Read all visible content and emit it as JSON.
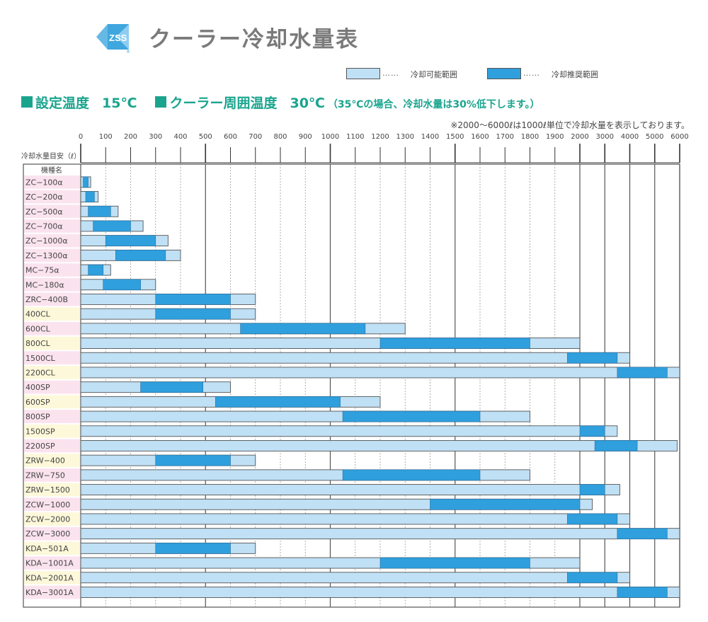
{
  "header": {
    "logo_text": "ZSS",
    "title": "クーラー冷却水量表"
  },
  "legend": {
    "possible_label": "冷却可能範囲",
    "recommended_label": "冷却推奨範囲",
    "dots": "……"
  },
  "conditions": {
    "set_temp_label": "設定温度",
    "set_temp_value": "15℃",
    "ambient_label": "クーラー周囲温度",
    "ambient_value": "30℃",
    "ambient_note": "（35℃の場合、冷却水量は30%低下します。）"
  },
  "note": "※2000〜6000ℓは1000ℓ単位で冷却水量を表示しております。",
  "colors": {
    "possible": "#bfe0f5",
    "recommended": "#2f9fdd",
    "label_pink": "#fbe3ee",
    "label_yellow": "#fdf8d9",
    "accent": "#1aa48e"
  },
  "chart_data": {
    "type": "bar",
    "orientation": "horizontal",
    "title": "クーラー冷却水量表",
    "xlabel": "冷却水量目安（ℓ）",
    "ylabel": "機種名",
    "x_ticks": [
      "0",
      "100",
      "200",
      "300",
      "400",
      "500",
      "600",
      "700",
      "800",
      "900",
      "1000",
      "1100",
      "1200",
      "1300",
      "1400",
      "1500",
      "1600",
      "1700",
      "1800",
      "1900",
      "2000",
      "3000",
      "4000",
      "5000",
      "6000"
    ],
    "x_scale": "piecewise: 0–2000 linear by 100, 2000–6000 linear by 1000",
    "categories": [
      "ZC−100α",
      "ZC−200α",
      "ZC−500α",
      "ZC−700α",
      "ZC−1000α",
      "ZC−1300α",
      "MC−75α",
      "MC−180α",
      "ZRC−400B",
      "400CL",
      "600CL",
      "800CL",
      "1500CL",
      "2200CL",
      "400SP",
      "600SP",
      "800SP",
      "1500SP",
      "2200SP",
      "ZRW−400",
      "ZRW−750",
      "ZRW−1500",
      "ZCW−1000",
      "ZCW−2000",
      "ZCW−3000",
      "KDA−501A",
      "KDA−1001A",
      "KDA−2001A",
      "KDA−3001A"
    ],
    "label_colors": [
      "pink",
      "pink",
      "pink",
      "pink",
      "pink",
      "pink",
      "pink",
      "pink",
      "pink",
      "yellow",
      "pink",
      "yellow",
      "pink",
      "yellow",
      "pink",
      "yellow",
      "pink",
      "yellow",
      "pink",
      "yellow",
      "pink",
      "yellow",
      "pink",
      "yellow",
      "pink",
      "yellow",
      "pink",
      "yellow",
      "pink"
    ],
    "series": [
      {
        "name": "冷却可能範囲",
        "values": [
          [
            0,
            40
          ],
          [
            0,
            70
          ],
          [
            0,
            150
          ],
          [
            0,
            250
          ],
          [
            0,
            350
          ],
          [
            0,
            400
          ],
          [
            0,
            120
          ],
          [
            0,
            300
          ],
          [
            0,
            700
          ],
          [
            0,
            700
          ],
          [
            0,
            1300
          ],
          [
            0,
            2000
          ],
          [
            0,
            4000
          ],
          [
            0,
            6000
          ],
          [
            0,
            600
          ],
          [
            0,
            1200
          ],
          [
            0,
            1800
          ],
          [
            0,
            3500
          ],
          [
            0,
            5900
          ],
          [
            0,
            700
          ],
          [
            0,
            1800
          ],
          [
            0,
            3600
          ],
          [
            0,
            2500
          ],
          [
            0,
            4000
          ],
          [
            0,
            6000
          ],
          [
            0,
            700
          ],
          [
            0,
            2000
          ],
          [
            0,
            4000
          ],
          [
            0,
            6000
          ]
        ]
      },
      {
        "name": "冷却推奨範囲",
        "values": [
          [
            10,
            30
          ],
          [
            20,
            55
          ],
          [
            30,
            120
          ],
          [
            50,
            200
          ],
          [
            100,
            300
          ],
          [
            140,
            340
          ],
          [
            30,
            90
          ],
          [
            90,
            240
          ],
          [
            300,
            600
          ],
          [
            300,
            600
          ],
          [
            640,
            1140
          ],
          [
            1200,
            1800
          ],
          [
            1950,
            3500
          ],
          [
            3500,
            5500
          ],
          [
            240,
            490
          ],
          [
            540,
            1040
          ],
          [
            1050,
            1600
          ],
          [
            2000,
            3000
          ],
          [
            2600,
            4300
          ],
          [
            300,
            600
          ],
          [
            1050,
            1600
          ],
          [
            2000,
            3000
          ],
          [
            1400,
            2000
          ],
          [
            1950,
            3500
          ],
          [
            3500,
            5500
          ],
          [
            300,
            600
          ],
          [
            1200,
            1800
          ],
          [
            1950,
            3500
          ],
          [
            3500,
            5500
          ]
        ]
      }
    ],
    "xlim": [
      0,
      6000
    ],
    "grid": true
  }
}
